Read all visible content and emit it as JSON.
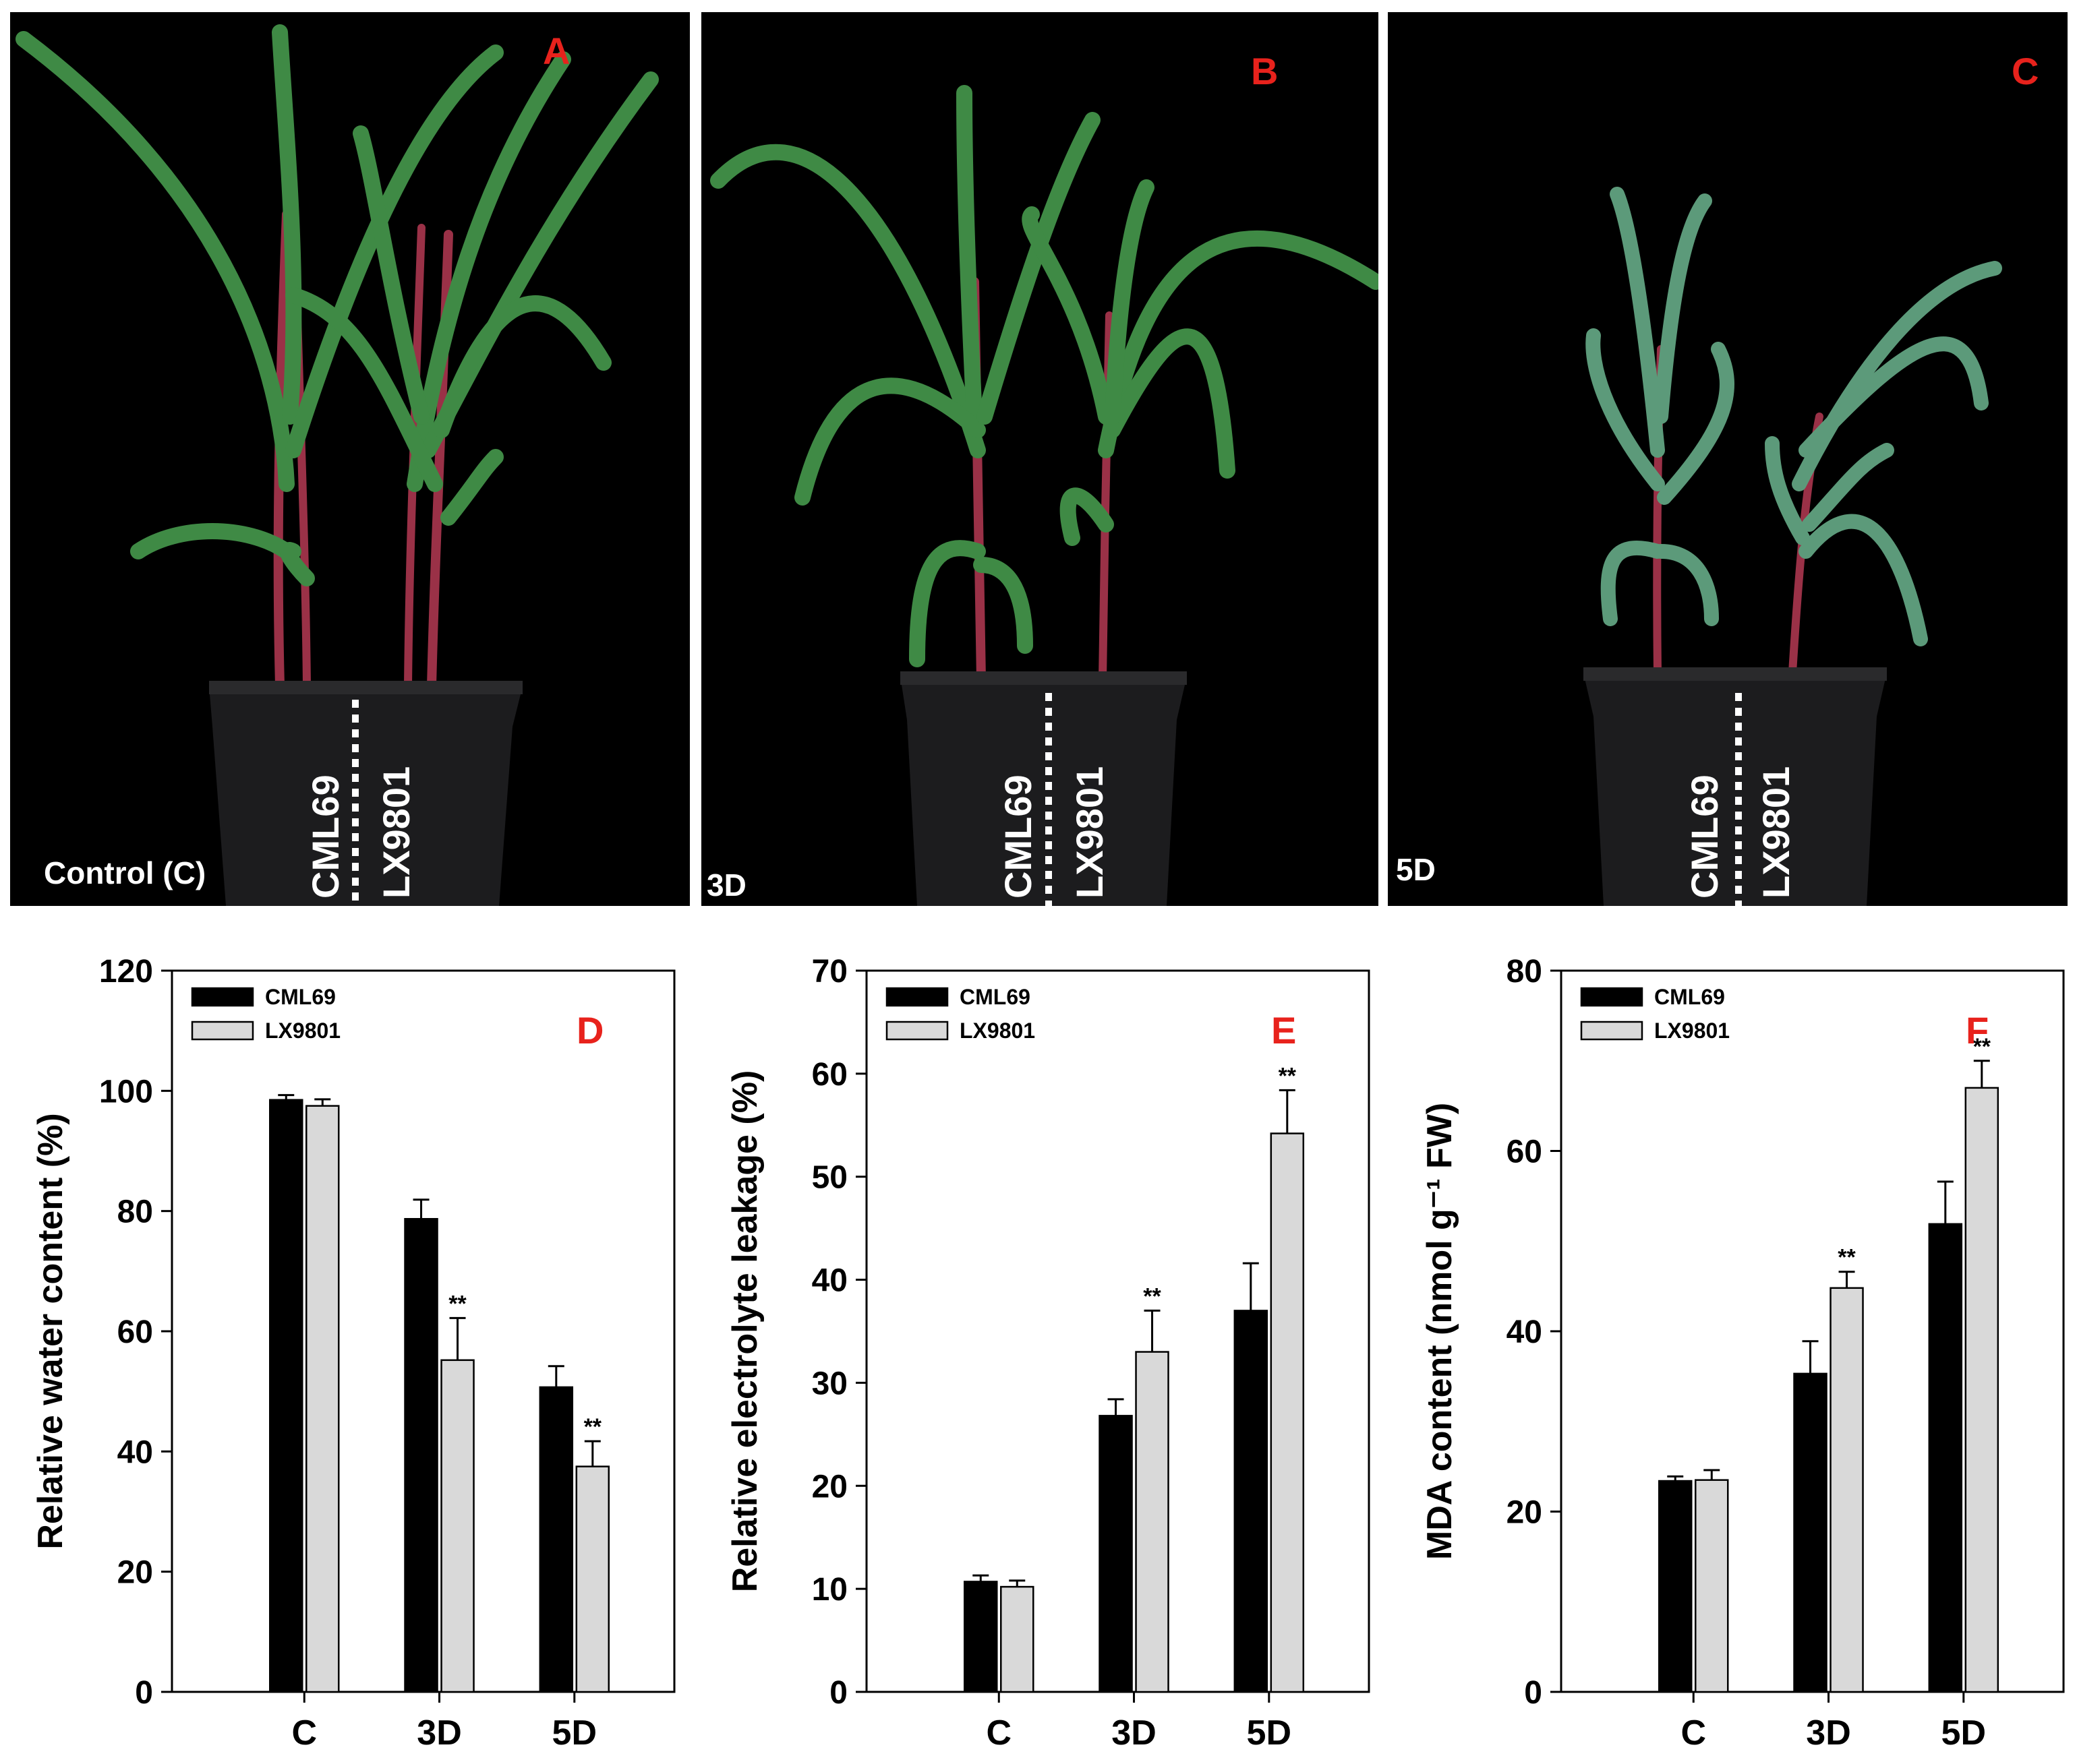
{
  "photos": [
    {
      "letter": "A",
      "condition": "Control (C)",
      "left_label": "CML69",
      "right_label": "LX9801"
    },
    {
      "letter": "B",
      "condition": "3D",
      "left_label": "CML69",
      "right_label": "LX9801"
    },
    {
      "letter": "C",
      "condition": "5D",
      "left_label": "CML69",
      "right_label": "LX9801"
    }
  ],
  "colors": {
    "cml69": "#000000",
    "lx9801": "#d9d9d9",
    "panel_letter": "#e8221c",
    "photo_bg": "#000000",
    "leaf": "#3f8a45",
    "stem": "#9a3147",
    "pot": "#1c1c1e"
  },
  "chart_data": [
    {
      "type": "bar",
      "letter": "D",
      "categories": [
        "C",
        "3D",
        "5D"
      ],
      "series": [
        {
          "name": "CML69",
          "values": [
            98.5,
            78.7,
            50.7
          ],
          "errors": [
            0.8,
            3.2,
            3.5
          ],
          "sig": [
            "",
            "",
            ""
          ]
        },
        {
          "name": "LX9801",
          "values": [
            97.5,
            55.2,
            37.5
          ],
          "errors": [
            1.1,
            7.0,
            4.2
          ],
          "sig": [
            "",
            "**",
            "**"
          ]
        }
      ],
      "ylabel": "Relative water content (%)",
      "ylim": [
        0,
        120
      ],
      "yticks": [
        0,
        20,
        40,
        60,
        80,
        100,
        120
      ],
      "legend_position": "top-left"
    },
    {
      "type": "bar",
      "letter": "E",
      "categories": [
        "C",
        "3D",
        "5D"
      ],
      "series": [
        {
          "name": "CML69",
          "values": [
            10.7,
            26.8,
            37.0
          ],
          "errors": [
            0.6,
            1.6,
            4.6
          ],
          "sig": [
            "",
            "",
            ""
          ]
        },
        {
          "name": "LX9801",
          "values": [
            10.2,
            33.0,
            54.2
          ],
          "errors": [
            0.6,
            4.0,
            4.2
          ],
          "sig": [
            "",
            "**",
            "**"
          ]
        }
      ],
      "ylabel": "Relative electrolyte leakage (%)",
      "ylim": [
        0,
        70
      ],
      "yticks": [
        0,
        10,
        20,
        30,
        40,
        50,
        60,
        70
      ],
      "legend_position": "top-left"
    },
    {
      "type": "bar",
      "letter": "F",
      "categories": [
        "C",
        "3D",
        "5D"
      ],
      "series": [
        {
          "name": "CML69",
          "values": [
            23.4,
            35.3,
            51.9
          ],
          "errors": [
            0.5,
            3.6,
            4.7
          ],
          "sig": [
            "",
            "",
            ""
          ]
        },
        {
          "name": "LX9801",
          "values": [
            23.5,
            44.8,
            67.0
          ],
          "errors": [
            1.1,
            1.8,
            3.0
          ],
          "sig": [
            "",
            "**",
            "**"
          ]
        }
      ],
      "ylabel": "MDA content (nmol g⁻¹ FW)",
      "ylim": [
        0,
        80
      ],
      "yticks": [
        0,
        20,
        40,
        60,
        80
      ],
      "legend_position": "top-left"
    }
  ]
}
